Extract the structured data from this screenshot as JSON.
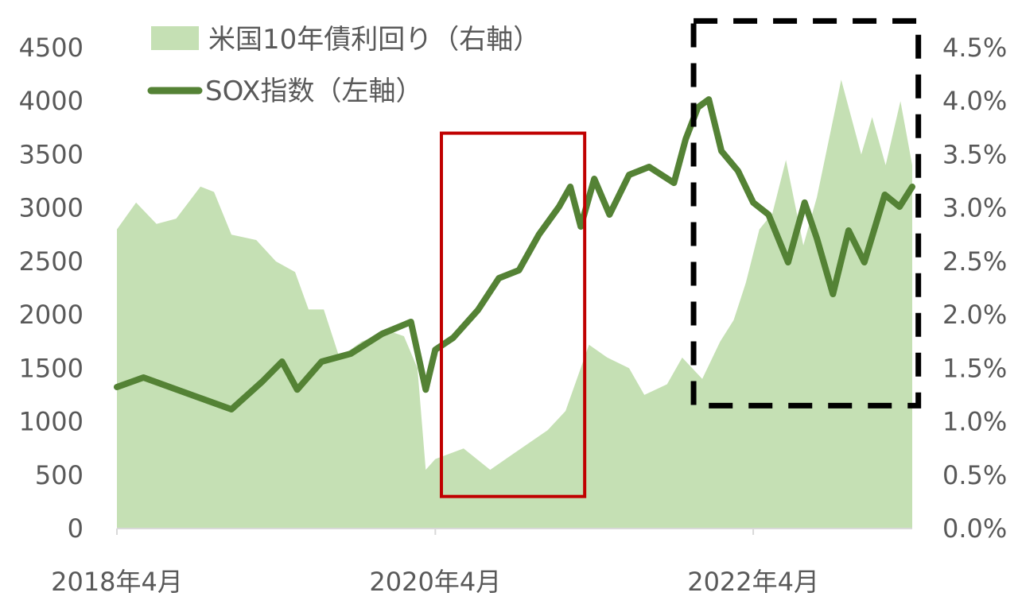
{
  "chart_data": {
    "type": "line+area",
    "title": "",
    "xlabel": "",
    "ylabel": "",
    "x_ticks": [
      "2018年4月",
      "2020年4月",
      "2022年4月"
    ],
    "x_tick_dates": [
      "2018-04-01",
      "2020-04-01",
      "2022-04-01"
    ],
    "x_range": [
      "2018-04-01",
      "2023-04-01"
    ],
    "y_left": {
      "range": [
        0,
        4500
      ],
      "ticks": [
        "0",
        "500",
        "1000",
        "1500",
        "2000",
        "2500",
        "3000",
        "3500",
        "4000",
        "4500"
      ]
    },
    "y_right": {
      "range": [
        0,
        4.5
      ],
      "unit": "%",
      "ticks": [
        "0.0%",
        "0.5%",
        "1.0%",
        "1.5%",
        "2.0%",
        "2.5%",
        "3.0%",
        "3.5%",
        "4.0%",
        "4.5%"
      ]
    },
    "grid": false,
    "legend_position": "top-left",
    "series": [
      {
        "name": "米国10年債利回り（右軸）",
        "type": "area",
        "axis": "right",
        "color": "#c5e0b4",
        "points": [
          [
            "2018-04-01",
            2.8
          ],
          [
            "2018-05-15",
            3.05
          ],
          [
            "2018-07-01",
            2.85
          ],
          [
            "2018-08-15",
            2.9
          ],
          [
            "2018-10-10",
            3.2
          ],
          [
            "2018-11-10",
            3.15
          ],
          [
            "2018-12-20",
            2.75
          ],
          [
            "2019-02-15",
            2.7
          ],
          [
            "2019-04-01",
            2.5
          ],
          [
            "2019-05-15",
            2.4
          ],
          [
            "2019-06-15",
            2.05
          ],
          [
            "2019-07-20",
            2.05
          ],
          [
            "2019-08-25",
            1.6
          ],
          [
            "2019-10-15",
            1.75
          ],
          [
            "2019-12-15",
            1.85
          ],
          [
            "2020-01-20",
            1.8
          ],
          [
            "2020-02-20",
            1.5
          ],
          [
            "2020-03-10",
            0.55
          ],
          [
            "2020-04-01",
            0.65
          ],
          [
            "2020-06-05",
            0.75
          ],
          [
            "2020-08-05",
            0.55
          ],
          [
            "2020-10-15",
            0.75
          ],
          [
            "2020-12-15",
            0.92
          ],
          [
            "2021-01-25",
            1.1
          ],
          [
            "2021-03-20",
            1.72
          ],
          [
            "2021-05-01",
            1.6
          ],
          [
            "2021-06-20",
            1.5
          ],
          [
            "2021-07-25",
            1.25
          ],
          [
            "2021-09-15",
            1.35
          ],
          [
            "2021-10-20",
            1.6
          ],
          [
            "2021-12-05",
            1.4
          ],
          [
            "2022-01-15",
            1.75
          ],
          [
            "2022-02-15",
            1.95
          ],
          [
            "2022-03-15",
            2.3
          ],
          [
            "2022-04-15",
            2.8
          ],
          [
            "2022-05-15",
            2.95
          ],
          [
            "2022-06-15",
            3.45
          ],
          [
            "2022-07-25",
            2.65
          ],
          [
            "2022-08-25",
            3.1
          ],
          [
            "2022-10-10",
            4.0
          ],
          [
            "2022-10-20",
            4.2
          ],
          [
            "2022-12-05",
            3.5
          ],
          [
            "2022-12-30",
            3.85
          ],
          [
            "2023-01-30",
            3.4
          ],
          [
            "2023-03-05",
            4.0
          ],
          [
            "2023-04-01",
            3.4
          ]
        ]
      },
      {
        "name": "SOX指数（左軸）",
        "type": "line",
        "axis": "left",
        "color": "#548235",
        "points": [
          [
            "2018-04-01",
            1324
          ],
          [
            "2018-06-01",
            1413
          ],
          [
            "2018-10-05",
            1227
          ],
          [
            "2018-12-20",
            1116
          ],
          [
            "2019-03-01",
            1376
          ],
          [
            "2019-04-15",
            1562
          ],
          [
            "2019-05-20",
            1300
          ],
          [
            "2019-07-15",
            1562
          ],
          [
            "2019-09-20",
            1636
          ],
          [
            "2019-12-01",
            1822
          ],
          [
            "2020-02-05",
            1934
          ],
          [
            "2020-03-10",
            1300
          ],
          [
            "2020-04-01",
            1673
          ],
          [
            "2020-05-12",
            1785
          ],
          [
            "2020-07-08",
            2045
          ],
          [
            "2020-08-25",
            2343
          ],
          [
            "2020-10-10",
            2417
          ],
          [
            "2020-11-25",
            2752
          ],
          [
            "2021-01-10",
            3012
          ],
          [
            "2021-02-05",
            3198
          ],
          [
            "2021-03-01",
            2826
          ],
          [
            "2021-04-01",
            3273
          ],
          [
            "2021-05-06",
            2938
          ],
          [
            "2021-06-20",
            3310
          ],
          [
            "2021-08-05",
            3384
          ],
          [
            "2021-10-01",
            3235
          ],
          [
            "2021-10-28",
            3645
          ],
          [
            "2021-11-25",
            3942
          ],
          [
            "2021-12-20",
            4016
          ],
          [
            "2022-01-18",
            3533
          ],
          [
            "2022-02-25",
            3347
          ],
          [
            "2022-04-01",
            3050
          ],
          [
            "2022-05-06",
            2938
          ],
          [
            "2022-06-20",
            2492
          ],
          [
            "2022-07-28",
            3050
          ],
          [
            "2022-08-25",
            2715
          ],
          [
            "2022-10-01",
            2194
          ],
          [
            "2022-11-06",
            2789
          ],
          [
            "2022-12-12",
            2492
          ],
          [
            "2023-01-28",
            3124
          ],
          [
            "2023-03-03",
            3012
          ],
          [
            "2023-04-01",
            3198
          ]
        ]
      }
    ],
    "annotations": [
      {
        "type": "rectangle",
        "style": "solid",
        "color": "#c00000",
        "x_range": [
          "2020-04-15",
          "2021-03-10"
        ],
        "y_range_left": [
          300,
          3700
        ]
      },
      {
        "type": "rectangle",
        "style": "dashed",
        "color": "#000000",
        "x_range": [
          "2021-11-15",
          "2023-04-15"
        ],
        "y_range_left": [
          1150,
          4750
        ]
      }
    ]
  }
}
